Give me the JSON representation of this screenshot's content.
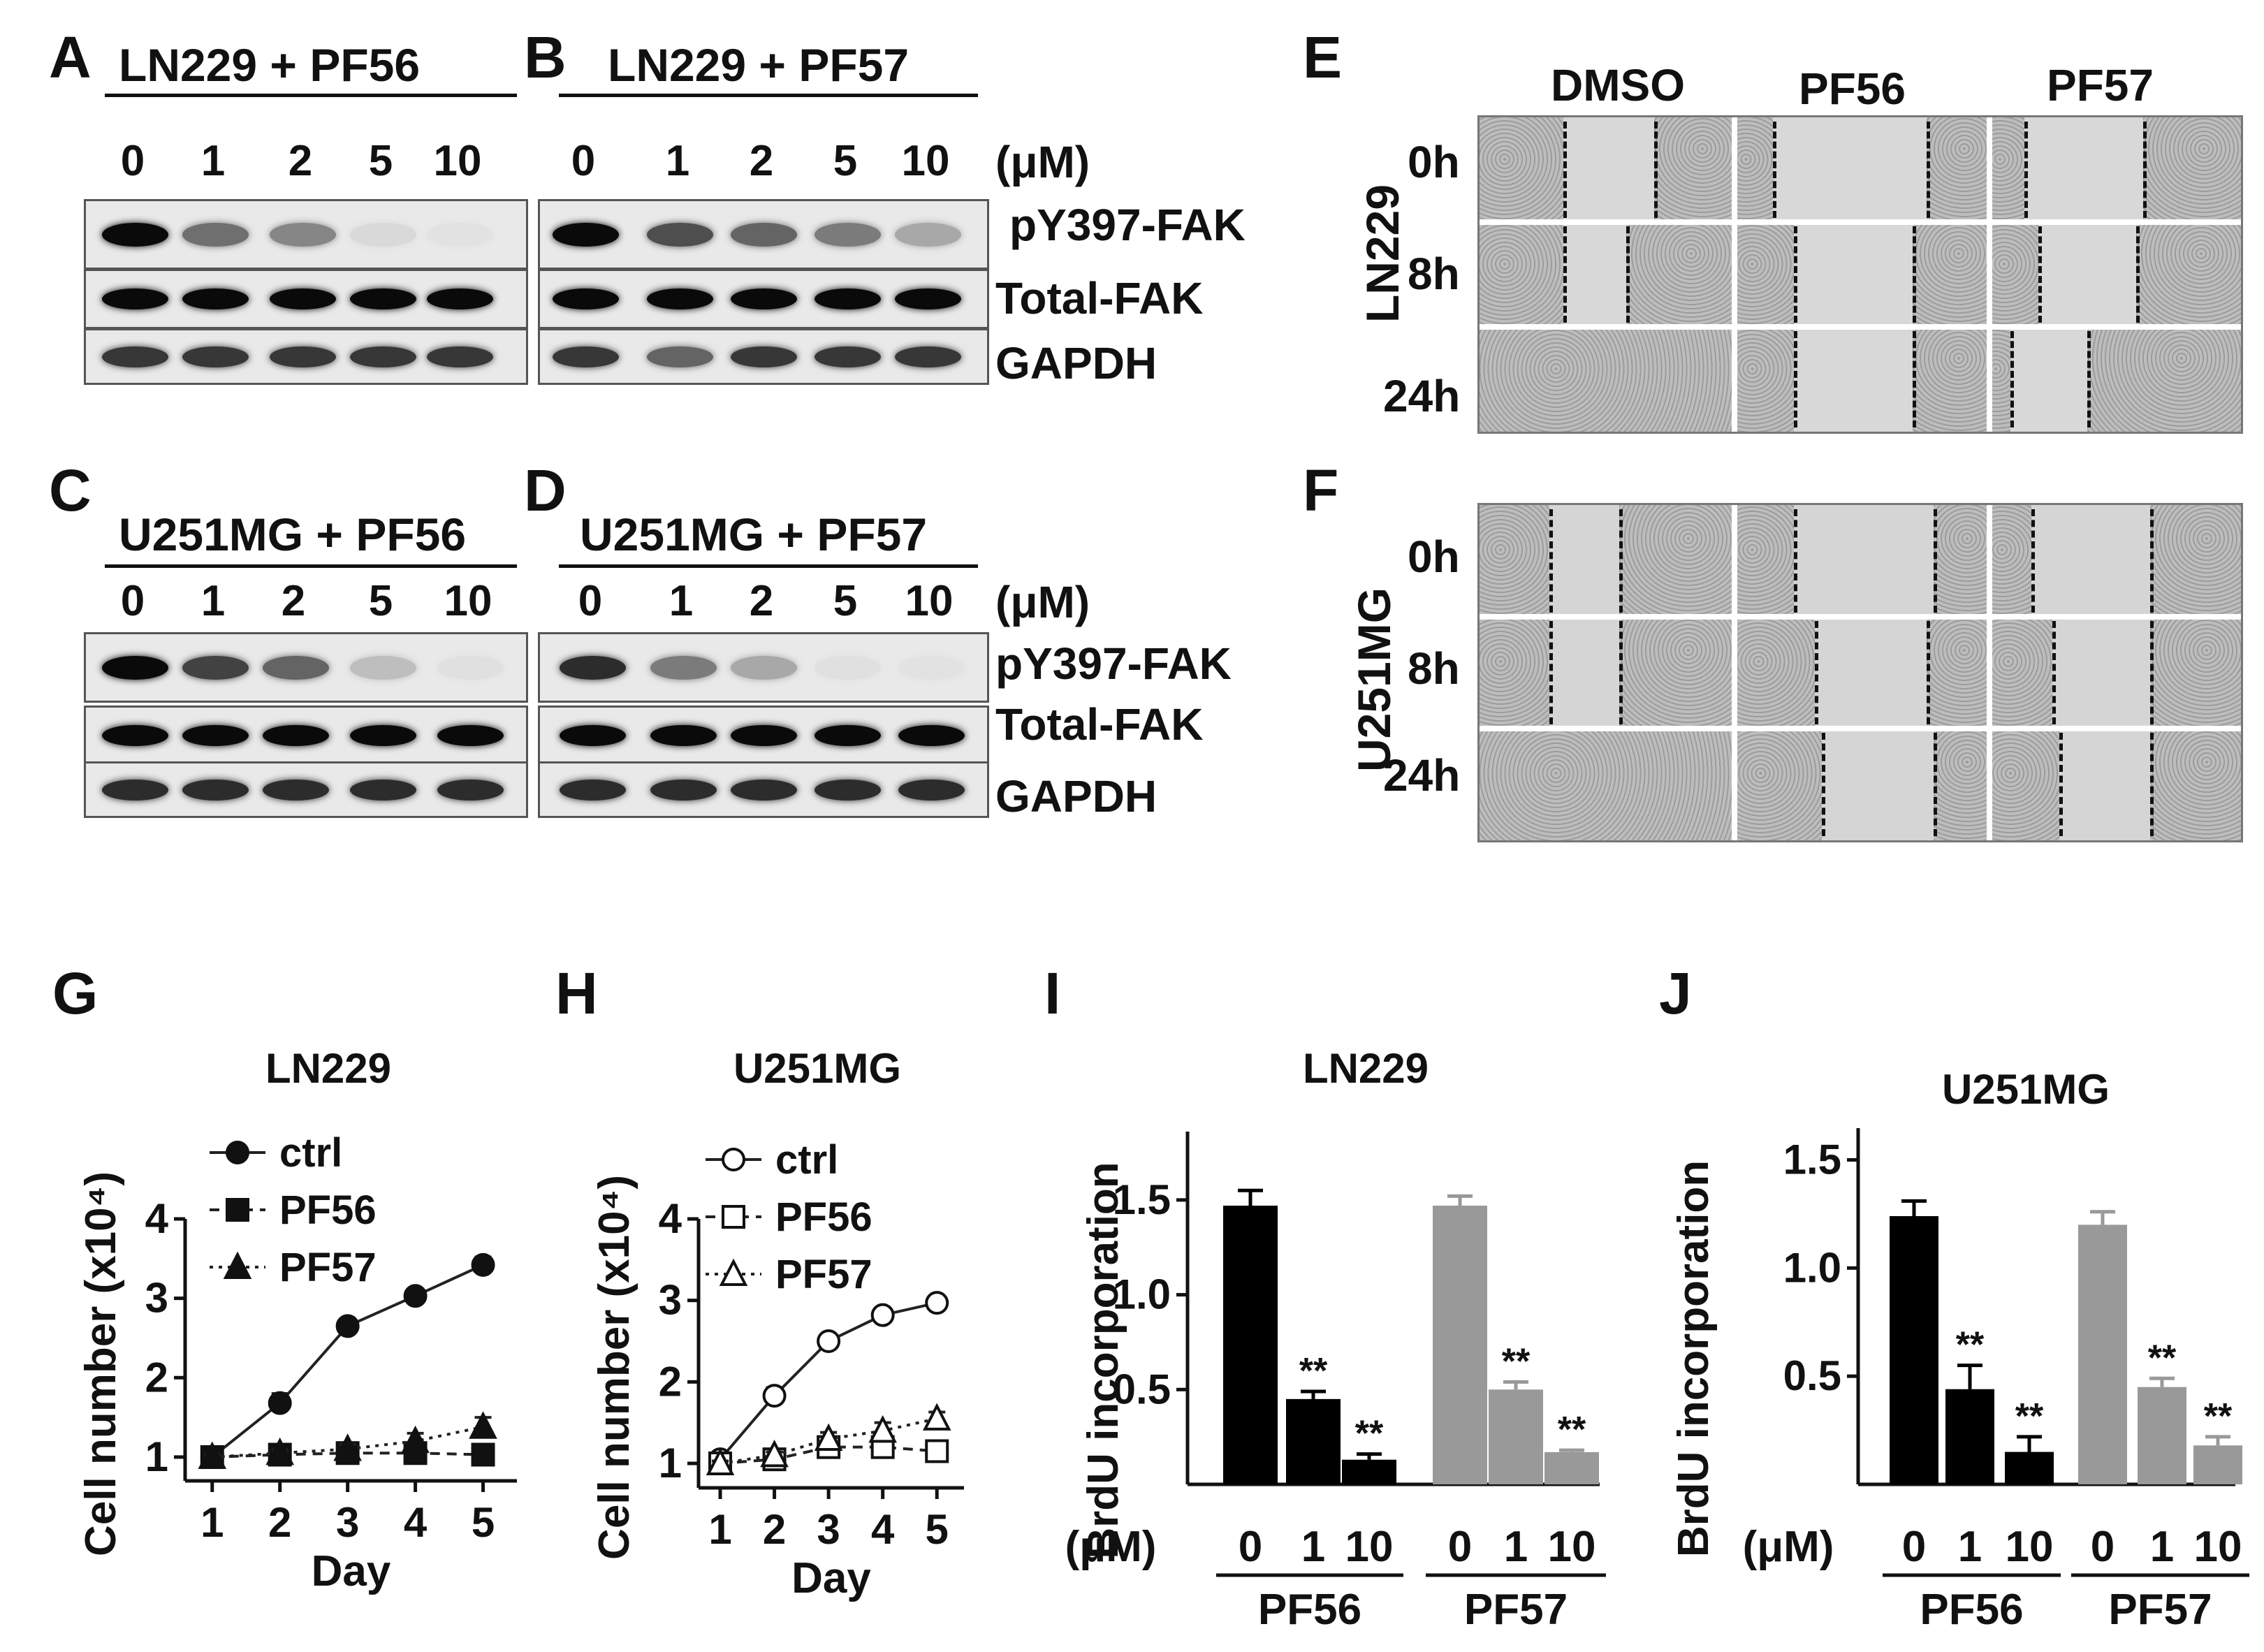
{
  "panels": {
    "A": {
      "letter": "A",
      "title": "LN229 + PF56",
      "doses": [
        "0",
        "1",
        "2",
        "5",
        "10"
      ]
    },
    "B": {
      "letter": "B",
      "title": "LN229 + PF57",
      "doses": [
        "0",
        "1",
        "2",
        "5",
        "10"
      ],
      "unit": "(μM)"
    },
    "C": {
      "letter": "C",
      "title": "U251MG + PF56",
      "doses": [
        "0",
        "1",
        "2",
        "5",
        "10"
      ]
    },
    "D": {
      "letter": "D",
      "title": "U251MG + PF57",
      "doses": [
        "0",
        "1",
        "2",
        "5",
        "10"
      ],
      "unit": "(μM)"
    },
    "blot_labels": [
      "pY397-FAK",
      "Total-FAK",
      "GAPDH"
    ],
    "E": {
      "letter": "E",
      "cell": "LN229",
      "columns": [
        "DMSO",
        "PF56",
        "PF57"
      ],
      "times": [
        "0h",
        "8h",
        "24h"
      ]
    },
    "F": {
      "letter": "F",
      "cell": "U251MG",
      "times": [
        "0h",
        "8h",
        "24h"
      ]
    },
    "G": {
      "letter": "G"
    },
    "H": {
      "letter": "H"
    },
    "I": {
      "letter": "I"
    },
    "J": {
      "letter": "J"
    }
  },
  "blot_intensity": {
    "A": [
      [
        1.0,
        0.55,
        0.45,
        0.08,
        0.04
      ],
      [
        1,
        1,
        1,
        1,
        1
      ],
      [
        0.8,
        0.8,
        0.8,
        0.8,
        0.8
      ]
    ],
    "B": [
      [
        1.0,
        0.7,
        0.6,
        0.5,
        0.3
      ],
      [
        1,
        1,
        1,
        1,
        1
      ],
      [
        0.8,
        0.6,
        0.8,
        0.8,
        0.8
      ]
    ],
    "C": [
      [
        1.0,
        0.75,
        0.6,
        0.2,
        0.05
      ],
      [
        1,
        1,
        1,
        1,
        1
      ],
      [
        0.85,
        0.85,
        0.85,
        0.85,
        0.85
      ]
    ],
    "D": [
      [
        0.85,
        0.5,
        0.3,
        0.05,
        0.04
      ],
      [
        1,
        1,
        1,
        1,
        1
      ],
      [
        0.85,
        0.85,
        0.85,
        0.85,
        0.85
      ]
    ]
  },
  "chart_data": [
    {
      "type": "line",
      "panel": "G",
      "title": "LN229",
      "xlabel": "Day",
      "ylabel": "Cell number (x10⁴)",
      "x": [
        1,
        2,
        3,
        4,
        5
      ],
      "xlim": [
        0.6,
        5.5
      ],
      "ylim": [
        0.7,
        4
      ],
      "yticks": [
        1,
        2,
        3,
        4
      ],
      "series": [
        {
          "name": "ctrl",
          "values": [
            1.0,
            1.68,
            2.65,
            3.03,
            3.42
          ],
          "err": [
            0.05,
            0.12,
            0.07,
            0.06,
            0.1
          ],
          "marker": "filled-circle",
          "line": "solid"
        },
        {
          "name": "PF56",
          "values": [
            1.0,
            1.03,
            1.05,
            1.05,
            1.03
          ],
          "err": [
            0.03,
            0.04,
            0.08,
            0.1,
            0.08
          ],
          "marker": "filled-square",
          "line": "dashed"
        },
        {
          "name": "PF57",
          "values": [
            1.0,
            1.05,
            1.1,
            1.2,
            1.38
          ],
          "err": [
            0.03,
            0.04,
            0.06,
            0.1,
            0.12
          ],
          "marker": "filled-triangle",
          "line": "dotted"
        }
      ]
    },
    {
      "type": "line",
      "panel": "H",
      "title": "U251MG",
      "xlabel": "Day",
      "ylabel": "Cell number (x10⁴)",
      "x": [
        1,
        2,
        3,
        4,
        5
      ],
      "xlim": [
        0.6,
        5.5
      ],
      "ylim": [
        0.7,
        4
      ],
      "yticks": [
        1,
        2,
        3,
        4
      ],
      "series": [
        {
          "name": "ctrl",
          "values": [
            1.05,
            1.83,
            2.5,
            2.82,
            2.97
          ],
          "err": [
            0.04,
            0.1,
            0.08,
            0.05,
            0.07
          ],
          "marker": "open-circle",
          "line": "solid"
        },
        {
          "name": "PF56",
          "values": [
            1.0,
            1.05,
            1.2,
            1.2,
            1.15
          ],
          "err": [
            0.03,
            0.04,
            0.08,
            0.1,
            0.06
          ],
          "marker": "open-square",
          "line": "dashed"
        },
        {
          "name": "PF57",
          "values": [
            1.0,
            1.1,
            1.3,
            1.4,
            1.55
          ],
          "err": [
            0.03,
            0.04,
            0.08,
            0.1,
            0.08
          ],
          "marker": "open-triangle",
          "line": "dotted"
        }
      ]
    },
    {
      "type": "bar",
      "panel": "I",
      "title": "LN229",
      "ylabel": "BrdU incorporation",
      "unit": "(μM)",
      "categories": [
        "0",
        "1",
        "10",
        "0",
        "1",
        "10"
      ],
      "groups": [
        "PF56",
        "PF57"
      ],
      "values": [
        1.47,
        0.45,
        0.13,
        1.47,
        0.5,
        0.17
      ],
      "err": [
        0.08,
        0.04,
        0.03,
        0.05,
        0.04,
        0.01
      ],
      "sig": [
        "",
        "**",
        "**",
        "",
        "**",
        "**"
      ],
      "colors": [
        "#000000",
        "#000000",
        "#000000",
        "#999999",
        "#999999",
        "#999999"
      ],
      "ylim": [
        0,
        1.75
      ],
      "yticks": [
        0.5,
        1.0,
        1.5
      ]
    },
    {
      "type": "bar",
      "panel": "J",
      "title": "U251MG",
      "ylabel": "BrdU incorporation",
      "unit": "(μM)",
      "categories": [
        "0",
        "1",
        "10",
        "0",
        "1",
        "10"
      ],
      "groups": [
        "PF56",
        "PF57"
      ],
      "values": [
        1.24,
        0.44,
        0.15,
        1.2,
        0.45,
        0.18
      ],
      "err": [
        0.07,
        0.11,
        0.07,
        0.06,
        0.04,
        0.04
      ],
      "sig": [
        "",
        "**",
        "**",
        "",
        "**",
        "**"
      ],
      "colors": [
        "#000000",
        "#000000",
        "#000000",
        "#999999",
        "#999999",
        "#999999"
      ],
      "ylim": [
        0,
        1.55
      ],
      "yticks": [
        0.5,
        1.0,
        1.5
      ]
    }
  ]
}
